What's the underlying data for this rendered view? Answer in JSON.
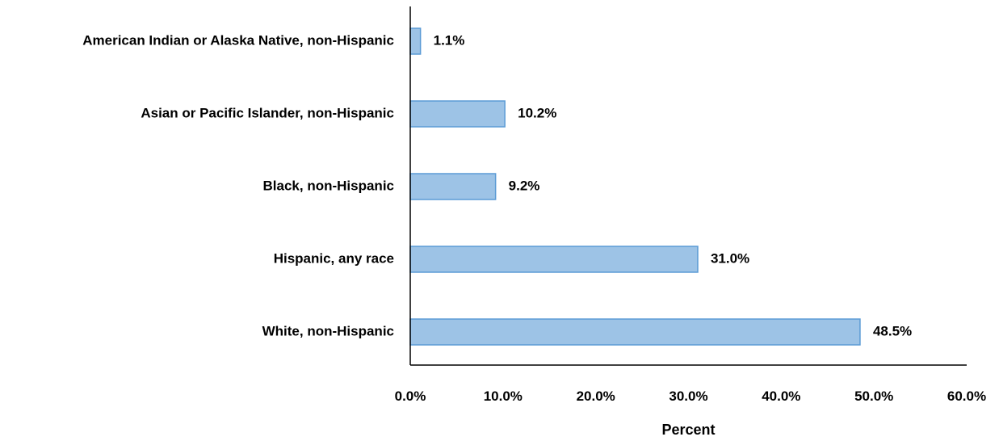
{
  "chart_data": {
    "type": "bar",
    "orientation": "horizontal",
    "categories": [
      "American Indian or Alaska Native, non-Hispanic",
      "Asian or Pacific Islander, non-Hispanic",
      "Black, non-Hispanic",
      "Hispanic, any race",
      "White, non-Hispanic"
    ],
    "values": [
      1.1,
      10.2,
      9.2,
      31.0,
      48.5
    ],
    "data_labels": [
      "1.1%",
      "10.2%",
      "9.2%",
      "31.0%",
      "48.5%"
    ],
    "title": "",
    "xlabel": "Percent",
    "ylabel": "",
    "xlim": [
      0,
      60
    ],
    "x_ticks": [
      0,
      10,
      20,
      30,
      40,
      50,
      60
    ],
    "x_tick_labels": [
      "0.0%",
      "10.0%",
      "20.0%",
      "30.0%",
      "40.0%",
      "50.0%",
      "60.0%"
    ],
    "grid": false,
    "legend": "none",
    "colors": {
      "bar_fill": "#9DC3E6",
      "bar_stroke": "#5B9BD5",
      "axis": "#000000",
      "text": "#000000"
    }
  }
}
